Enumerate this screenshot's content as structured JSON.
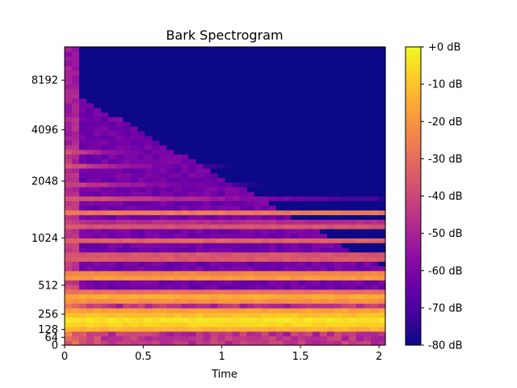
{
  "chart_data": {
    "type": "heatmap",
    "title": "Bark Spectrogram",
    "xlabel": "Time",
    "ylabel": "",
    "x_range": [
      0,
      2.04
    ],
    "x_ticks": [
      {
        "value": 0,
        "label": "0"
      },
      {
        "value": 0.5,
        "label": "0.5"
      },
      {
        "value": 1,
        "label": "1"
      },
      {
        "value": 1.5,
        "label": "1.5"
      },
      {
        "value": 2,
        "label": "2"
      }
    ],
    "y_scale": "bark",
    "y_range_hz": [
      0,
      16000
    ],
    "y_ticks": [
      {
        "value": 0,
        "label": "0"
      },
      {
        "value": 64,
        "label": "64"
      },
      {
        "value": 128,
        "label": "128"
      },
      {
        "value": 256,
        "label": "256"
      },
      {
        "value": 512,
        "label": "512"
      },
      {
        "value": 1024,
        "label": "1024"
      },
      {
        "value": 2048,
        "label": "2048"
      },
      {
        "value": 4096,
        "label": "4096"
      },
      {
        "value": 8192,
        "label": "8192"
      }
    ],
    "colormap": "plasma",
    "colorbar": {
      "range_db": [
        -80,
        0
      ],
      "ticks": [
        {
          "value": 0,
          "label": "+0 dB"
        },
        {
          "value": -10,
          "label": "-10 dB"
        },
        {
          "value": -20,
          "label": "-20 dB"
        },
        {
          "value": -30,
          "label": "-30 dB"
        },
        {
          "value": -40,
          "label": "-40 dB"
        },
        {
          "value": -50,
          "label": "-50 dB"
        },
        {
          "value": -60,
          "label": "-60 dB"
        },
        {
          "value": -70,
          "label": "-70 dB"
        },
        {
          "value": -80,
          "label": "-80 dB"
        }
      ]
    },
    "harmonic_bands": [
      {
        "freq_hz": 200,
        "peak_db": -2,
        "width": 1.0,
        "decay_per_s": 0
      },
      {
        "freq_hz": 400,
        "peak_db": -12,
        "width": 0.55,
        "decay_per_s": 0
      },
      {
        "freq_hz": 600,
        "peak_db": -14,
        "width": 0.45,
        "decay_per_s": 0
      },
      {
        "freq_hz": 800,
        "peak_db": -26,
        "width": 0.35,
        "decay_per_s": 0
      },
      {
        "freq_hz": 1000,
        "peak_db": -30,
        "width": 0.3,
        "decay_per_s": 0
      },
      {
        "freq_hz": 1200,
        "peak_db": -30,
        "width": 0.28,
        "decay_per_s": 0
      },
      {
        "freq_hz": 1400,
        "peak_db": -26,
        "width": 0.25,
        "decay_per_s": 0
      },
      {
        "freq_hz": 1650,
        "peak_db": -32,
        "width": 0.22,
        "decay_per_s": 2
      },
      {
        "freq_hz": 2000,
        "peak_db": -30,
        "width": 0.22,
        "decay_per_s": 3
      },
      {
        "freq_hz": 2500,
        "peak_db": -35,
        "width": 0.2,
        "decay_per_s": 4
      },
      {
        "freq_hz": 3000,
        "peak_db": -35,
        "width": 0.2,
        "decay_per_s": 6
      },
      {
        "freq_hz": 3600,
        "peak_db": -40,
        "width": 0.2,
        "decay_per_s": 10
      }
    ]
  }
}
